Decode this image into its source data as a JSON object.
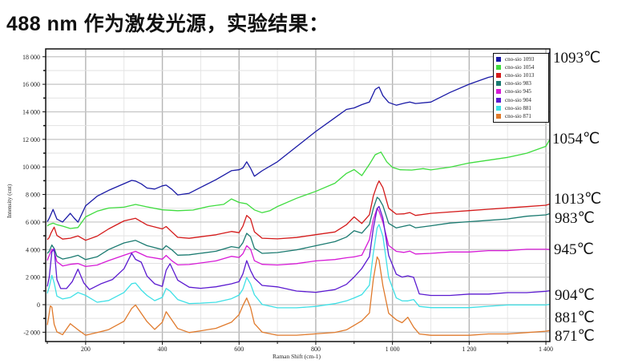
{
  "page": {
    "title_prefix": "488 nm",
    "title_suffix": "作为激发光源，实验结果："
  },
  "chart_data": {
    "type": "line",
    "title": "488 nm 作为激发光源，实验结果：",
    "xlabel": "Raman Shift (cm-1)",
    "ylabel": "Intensity (cnt)",
    "xlim": [
      100,
      1410
    ],
    "ylim": [
      -2700,
      18600
    ],
    "xticks": [
      200,
      400,
      600,
      800,
      1000,
      1200,
      1400
    ],
    "xtick_labels": [
      "200",
      "400",
      "600",
      "800",
      "1 000",
      "1 200",
      "1 400"
    ],
    "yticks": [
      -2000,
      0,
      2000,
      4000,
      6000,
      8000,
      10000,
      12000,
      14000,
      16000,
      18000
    ],
    "ytick_labels": [
      "-2 000",
      "0",
      "2 000",
      "4 000",
      "6 000",
      "8 000",
      "10 000",
      "12 000",
      "14 000",
      "16 000",
      "18 000"
    ],
    "grid": true,
    "legend_position": "upper right",
    "series": [
      {
        "name": "cno-sio 1093",
        "temp_label": "1093℃",
        "color": "#1a1aa6",
        "x": [
          100,
          105,
          115,
          125,
          140,
          160,
          170,
          180,
          200,
          230,
          260,
          300,
          320,
          330,
          345,
          360,
          380,
          400,
          410,
          425,
          440,
          470,
          500,
          540,
          580,
          600,
          610,
          620,
          630,
          640,
          660,
          700,
          750,
          800,
          850,
          880,
          900,
          920,
          940,
          955,
          965,
          975,
          990,
          1010,
          1030,
          1045,
          1060,
          1100,
          1150,
          1200,
          1250,
          1300,
          1350,
          1400,
          1410
        ],
        "y": [
          6000,
          6300,
          6900,
          6200,
          6000,
          6600,
          6300,
          6000,
          7200,
          7900,
          8300,
          8800,
          9000,
          9000,
          8800,
          8500,
          8400,
          8600,
          8700,
          8400,
          8000,
          8100,
          8500,
          9100,
          9700,
          9800,
          9900,
          10400,
          9900,
          9300,
          9700,
          10400,
          11500,
          12600,
          13600,
          14200,
          14300,
          14500,
          14700,
          15600,
          15800,
          15200,
          14700,
          14500,
          14600,
          14700,
          14600,
          14700,
          15400,
          16000,
          16500,
          16800,
          17200,
          18000,
          18300
        ]
      },
      {
        "name": "cno-sio 1054",
        "temp_label": "1054℃",
        "color": "#3fdc3f",
        "x": [
          100,
          105,
          115,
          125,
          140,
          160,
          180,
          200,
          230,
          260,
          300,
          330,
          360,
          400,
          440,
          480,
          520,
          560,
          580,
          600,
          620,
          640,
          660,
          680,
          700,
          750,
          800,
          850,
          880,
          900,
          920,
          940,
          955,
          970,
          985,
          1000,
          1020,
          1050,
          1080,
          1100,
          1150,
          1200,
          1250,
          1300,
          1350,
          1400,
          1410
        ],
        "y": [
          5700,
          5850,
          5900,
          5800,
          5700,
          5500,
          5600,
          6400,
          6800,
          7000,
          7100,
          7300,
          7100,
          6900,
          6800,
          6900,
          7100,
          7300,
          7700,
          7400,
          7300,
          6900,
          6700,
          6800,
          7100,
          7700,
          8200,
          8800,
          9500,
          9800,
          9400,
          10200,
          10900,
          11100,
          10400,
          10000,
          9800,
          9800,
          9900,
          9800,
          10000,
          10300,
          10500,
          10700,
          11000,
          11500,
          12000
        ]
      },
      {
        "name": "cno-sio 1013",
        "temp_label": "1013℃",
        "color": "#d41a1a",
        "x": [
          100,
          105,
          110,
          118,
          125,
          140,
          160,
          180,
          200,
          230,
          260,
          300,
          330,
          360,
          400,
          410,
          425,
          440,
          470,
          500,
          540,
          580,
          600,
          610,
          620,
          630,
          640,
          660,
          700,
          750,
          800,
          850,
          880,
          900,
          920,
          940,
          950,
          960,
          965,
          975,
          990,
          1010,
          1030,
          1045,
          1060,
          1100,
          1150,
          1200,
          1250,
          1300,
          1350,
          1400,
          1410
        ],
        "y": [
          4700,
          4900,
          5200,
          5650,
          5000,
          4750,
          4800,
          5000,
          4700,
          5000,
          5500,
          6100,
          6300,
          5800,
          5500,
          5700,
          5300,
          4900,
          4800,
          4900,
          5100,
          5300,
          5200,
          5700,
          6500,
          6200,
          5300,
          4800,
          4800,
          4900,
          5100,
          5300,
          5800,
          6400,
          5900,
          6500,
          7900,
          8700,
          9000,
          8500,
          7000,
          6600,
          6600,
          6700,
          6500,
          6600,
          6700,
          6800,
          6900,
          7000,
          7100,
          7200,
          7300
        ]
      },
      {
        "name": "cno-sio 983",
        "temp_label": "983℃",
        "color": "#1a7a70",
        "x": [
          100,
          105,
          112,
          118,
          125,
          140,
          160,
          180,
          200,
          230,
          260,
          300,
          330,
          360,
          400,
          410,
          425,
          440,
          470,
          500,
          540,
          580,
          600,
          610,
          620,
          630,
          640,
          660,
          700,
          750,
          800,
          850,
          880,
          900,
          920,
          940,
          950,
          960,
          965,
          975,
          990,
          1010,
          1030,
          1045,
          1060,
          1100,
          1150,
          1200,
          1250,
          1300,
          1350,
          1400,
          1410
        ],
        "y": [
          3700,
          3900,
          4300,
          4100,
          3500,
          3300,
          3400,
          3600,
          3300,
          3500,
          4000,
          4500,
          4700,
          4300,
          4000,
          4300,
          4000,
          3600,
          3600,
          3700,
          3900,
          4200,
          4100,
          4500,
          5200,
          4900,
          4100,
          3700,
          3800,
          4000,
          4300,
          4600,
          4900,
          5400,
          5200,
          5800,
          7000,
          7800,
          7700,
          7200,
          5900,
          5600,
          5700,
          5800,
          5600,
          5700,
          5900,
          6000,
          6100,
          6200,
          6400,
          6500,
          6600
        ]
      },
      {
        "name": "cno-sio 945",
        "temp_label": "945℃",
        "color": "#d61ad6",
        "x": [
          100,
          105,
          112,
          118,
          125,
          140,
          160,
          180,
          200,
          230,
          260,
          300,
          330,
          360,
          400,
          410,
          425,
          440,
          470,
          500,
          540,
          580,
          600,
          610,
          620,
          630,
          640,
          660,
          700,
          750,
          800,
          850,
          880,
          900,
          920,
          940,
          950,
          960,
          965,
          975,
          990,
          1010,
          1030,
          1045,
          1060,
          1100,
          1150,
          1200,
          1250,
          1300,
          1350,
          1400,
          1410
        ],
        "y": [
          3200,
          3600,
          4000,
          3900,
          3100,
          2800,
          2900,
          3000,
          2800,
          2900,
          3200,
          3600,
          3900,
          3500,
          3300,
          3600,
          3200,
          2900,
          2900,
          3000,
          3200,
          3500,
          3400,
          3700,
          4300,
          4000,
          3200,
          2900,
          2900,
          3000,
          3200,
          3300,
          3400,
          3500,
          3600,
          4700,
          6200,
          7000,
          6800,
          6000,
          4300,
          3900,
          3800,
          3900,
          3700,
          3700,
          3800,
          3800,
          3900,
          3900,
          4000,
          4000,
          4000
        ]
      },
      {
        "name": "cno-sio 904",
        "temp_label": "904℃",
        "color": "#5b1ad0",
        "x": [
          100,
          105,
          112,
          118,
          125,
          135,
          150,
          165,
          180,
          195,
          210,
          240,
          270,
          300,
          320,
          330,
          345,
          360,
          380,
          400,
          410,
          420,
          440,
          470,
          500,
          540,
          580,
          600,
          610,
          620,
          630,
          640,
          660,
          700,
          750,
          800,
          850,
          880,
          900,
          920,
          940,
          950,
          960,
          965,
          975,
          990,
          1010,
          1025,
          1040,
          1055,
          1070,
          1100,
          1150,
          1200,
          1250,
          1300,
          1350,
          1400,
          1410
        ],
        "y": [
          1300,
          2000,
          3800,
          4100,
          1800,
          1200,
          1200,
          1700,
          2600,
          1600,
          1100,
          1500,
          1800,
          2600,
          3700,
          3300,
          3100,
          2100,
          1500,
          1300,
          2500,
          3000,
          1800,
          1300,
          1200,
          1300,
          1500,
          1700,
          2200,
          3200,
          2500,
          1900,
          1400,
          1300,
          1000,
          900,
          1100,
          1500,
          2000,
          2600,
          3500,
          5500,
          7000,
          7100,
          6300,
          3600,
          2200,
          2000,
          2100,
          2000,
          800,
          700,
          700,
          800,
          800,
          900,
          900,
          1000,
          1000
        ]
      },
      {
        "name": "cno-sio 881",
        "temp_label": "881℃",
        "color": "#3ee0e6",
        "x": [
          100,
          105,
          112,
          118,
          125,
          140,
          160,
          180,
          200,
          230,
          260,
          300,
          320,
          330,
          345,
          360,
          380,
          400,
          410,
          420,
          440,
          470,
          500,
          540,
          580,
          600,
          610,
          620,
          630,
          640,
          660,
          700,
          750,
          800,
          850,
          880,
          900,
          920,
          940,
          950,
          960,
          965,
          975,
          990,
          1010,
          1025,
          1040,
          1055,
          1070,
          1100,
          1150,
          1200,
          1250,
          1300,
          1350,
          1400,
          1410
        ],
        "y": [
          800,
          1300,
          2100,
          1600,
          600,
          400,
          500,
          900,
          700,
          200,
          300,
          900,
          1500,
          1600,
          1100,
          700,
          300,
          500,
          1200,
          1000,
          400,
          100,
          100,
          200,
          400,
          700,
          1100,
          2000,
          1500,
          700,
          0,
          -200,
          -200,
          -100,
          100,
          300,
          500,
          700,
          1400,
          3700,
          5600,
          5800,
          5000,
          2000,
          500,
          300,
          300,
          400,
          -100,
          -200,
          -200,
          -200,
          -100,
          0,
          0,
          0,
          0
        ]
      },
      {
        "name": "cno-sio 871",
        "temp_label": "871℃",
        "color": "#e07a2c",
        "x": [
          100,
          104,
          108,
          112,
          118,
          125,
          140,
          160,
          180,
          200,
          230,
          260,
          300,
          320,
          330,
          345,
          360,
          380,
          400,
          410,
          420,
          440,
          470,
          500,
          540,
          580,
          600,
          610,
          620,
          630,
          640,
          660,
          700,
          750,
          800,
          850,
          880,
          900,
          920,
          940,
          950,
          960,
          965,
          975,
          990,
          1010,
          1025,
          1040,
          1055,
          1070,
          1100,
          1150,
          1200,
          1250,
          1300,
          1350,
          1400,
          1410
        ],
        "y": [
          -1500,
          -800,
          -100,
          -200,
          -1400,
          -2000,
          -2200,
          -1400,
          -1800,
          -2200,
          -2000,
          -1800,
          -1200,
          -300,
          0,
          -600,
          -1200,
          -1800,
          -1300,
          -500,
          -900,
          -1700,
          -2000,
          -1900,
          -1700,
          -1300,
          -700,
          -100,
          500,
          -200,
          -1400,
          -2000,
          -2200,
          -2200,
          -2100,
          -2000,
          -1800,
          -1500,
          -1200,
          -600,
          1800,
          3500,
          3200,
          1400,
          -600,
          -1100,
          -1300,
          -900,
          -1600,
          -2100,
          -2200,
          -2200,
          -2200,
          -2100,
          -2100,
          -2000,
          -1900,
          -1900
        ]
      }
    ]
  },
  "right_labels": {
    "l1093": "1093℃",
    "l1054": "1054℃",
    "l1013": "1013℃",
    "l983": "983℃",
    "l945": "945℃",
    "l904": "904℃",
    "l881": "881℃",
    "l871": "871℃"
  },
  "legend": {
    "items": [
      {
        "label": "cno-sio 1093",
        "color": "#1a1aa6"
      },
      {
        "label": "cno-sio 1054",
        "color": "#3fdc3f"
      },
      {
        "label": "cno-sio 1013",
        "color": "#d41a1a"
      },
      {
        "label": "cno-sio 983",
        "color": "#1a7a70"
      },
      {
        "label": "cno-sio 945",
        "color": "#d61ad6"
      },
      {
        "label": "cno-sio 904",
        "color": "#5b1ad0"
      },
      {
        "label": "cno-sio 881",
        "color": "#3ee0e6"
      },
      {
        "label": "cno-sio 871",
        "color": "#e07a2c"
      }
    ]
  }
}
